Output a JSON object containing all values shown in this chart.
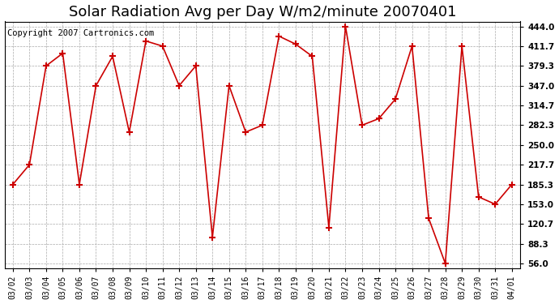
{
  "title": "Solar Radiation Avg per Day W/m2/minute 20070401",
  "copyright": "Copyright 2007 Cartronics.com",
  "dates": [
    "03/02",
    "03/03",
    "03/04",
    "03/05",
    "03/06",
    "03/07",
    "03/08",
    "03/09",
    "03/10",
    "03/11",
    "03/12",
    "03/13",
    "03/14",
    "03/15",
    "03/16",
    "03/17",
    "03/18",
    "03/19",
    "03/20",
    "03/21",
    "03/22",
    "03/23",
    "03/24",
    "03/25",
    "03/26",
    "03/27",
    "03/28",
    "03/29",
    "03/30",
    "03/31",
    "04/01"
  ],
  "values": [
    185.3,
    217.7,
    379.3,
    400.0,
    185.3,
    347.0,
    395.0,
    271.0,
    420.0,
    411.7,
    347.0,
    379.3,
    99.0,
    347.0,
    271.0,
    282.3,
    428.0,
    415.0,
    395.0,
    115.0,
    444.0,
    282.3,
    293.0,
    325.0,
    411.7,
    130.0,
    56.0,
    411.7,
    165.0,
    153.0,
    185.3
  ],
  "line_color": "#cc0000",
  "marker": "+",
  "marker_size": 6,
  "grid_color": "#aaaaaa",
  "bg_color": "#ffffff",
  "plot_bg_color": "#ffffff",
  "yticks": [
    56.0,
    88.3,
    120.7,
    153.0,
    185.3,
    217.7,
    250.0,
    282.3,
    314.7,
    347.0,
    379.3,
    411.7,
    444.0
  ],
  "ylim": [
    56.0,
    444.0
  ],
  "title_fontsize": 13,
  "copyright_fontsize": 7.5
}
